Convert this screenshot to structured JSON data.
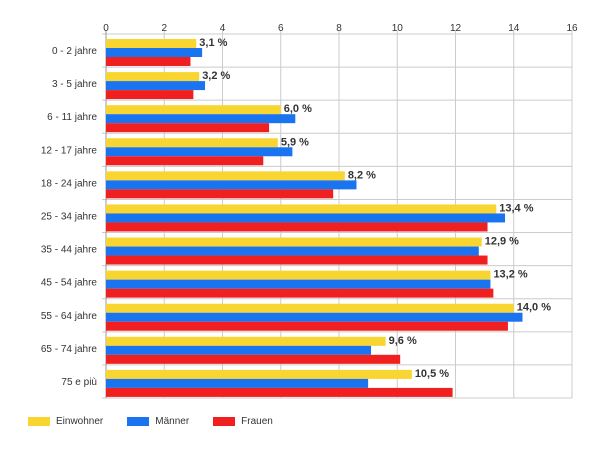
{
  "chart_data": {
    "type": "bar",
    "orientation": "horizontal",
    "categories": [
      "0 - 2 jahre",
      "3 - 5 jahre",
      "6 - 11 jahre",
      "12 - 17 jahre",
      "18 - 24 jahre",
      "25 - 34 jahre",
      "35 - 44 jahre",
      "45 - 54 jahre",
      "55 - 64 jahre",
      "65 - 74 jahre",
      "75 e più"
    ],
    "series": [
      {
        "name": "Einwohner",
        "color": "#f9d531",
        "values": [
          3.1,
          3.2,
          6.0,
          5.9,
          8.2,
          13.4,
          12.9,
          13.2,
          14.0,
          9.6,
          10.5
        ]
      },
      {
        "name": "Männer",
        "color": "#1a74f0",
        "values": [
          3.3,
          3.4,
          6.5,
          6.4,
          8.6,
          13.7,
          12.8,
          13.2,
          14.3,
          9.1,
          9.0
        ]
      },
      {
        "name": "Frauen",
        "color": "#f02020",
        "values": [
          2.9,
          3.0,
          5.6,
          5.4,
          7.8,
          13.1,
          13.1,
          13.3,
          13.8,
          10.1,
          11.9
        ]
      }
    ],
    "data_labels": [
      "3,1 %",
      "3,2 %",
      "6,0 %",
      "5,9 %",
      "8,2 %",
      "13,4 %",
      "12,9 %",
      "13,2 %",
      "14,0 %",
      "9,6 %",
      "10,5 %"
    ],
    "xlim": [
      0,
      16
    ],
    "xticks": [
      "0",
      "2",
      "4",
      "6",
      "8",
      "10",
      "12",
      "14",
      "16"
    ],
    "title": "",
    "xlabel": "",
    "ylabel": "",
    "grid": true,
    "legend_position": "bottom-left"
  }
}
